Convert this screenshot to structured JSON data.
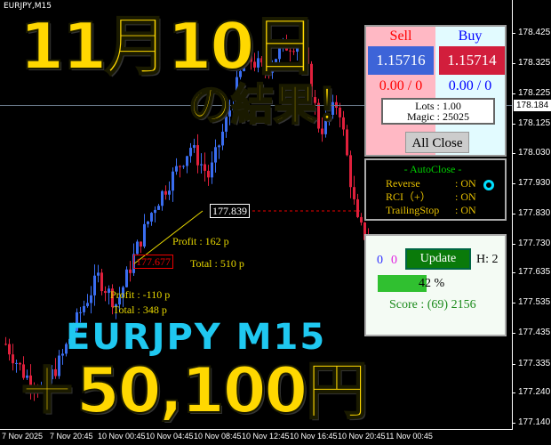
{
  "symbol": "EURJPY,M15",
  "price_axis": [
    "178.425",
    "178.325",
    "178.225",
    "178.125",
    "178.030",
    "177.930",
    "177.830",
    "177.730",
    "177.635",
    "177.535",
    "177.435",
    "177.335",
    "177.240",
    "177.140"
  ],
  "current_price": "178.184",
  "time_axis": [
    "7 Nov 2025",
    "7 Nov 20:45",
    "10 Nov 00:45",
    "10 Nov 04:45",
    "10 Nov 08:45",
    "10 Nov 12:45",
    "10 Nov 16:45",
    "10 Nov 20:45",
    "11 Nov 00:45"
  ],
  "price_path": [
    177.4,
    177.3,
    177.25,
    177.35,
    177.5,
    177.62,
    177.53,
    177.7,
    177.85,
    177.95,
    178.05,
    177.95,
    178.15,
    178.35,
    178.3,
    178.38,
    178.4,
    178.1,
    178.2,
    177.8,
    177.7
  ],
  "colors": {
    "bull": "#3a6df0",
    "bear": "#e0203c",
    "overlay_yellow": "#ffd800",
    "overlay_cyan": "#1fc8f0"
  },
  "overlay": {
    "date": "11月10日",
    "result": "の結果！",
    "pair": "EURJPY M15",
    "profit": "＋50,100円"
  },
  "trades": {
    "entry_price": "177.677",
    "exit_price": "177.839",
    "profit1": "Profit : 162 p",
    "total1": "Total : 510 p",
    "profit2": "Profit : -110 p",
    "total2": "Total : 348 p"
  },
  "panel": {
    "sell_label": "Sell",
    "buy_label": "Buy",
    "sell_price": "1.15716",
    "buy_price": "1.15714",
    "sell_pos": "0.00 / 0",
    "buy_pos": "0.00 / 0",
    "lots": "Lots   : 1.00",
    "magic": "Magic : 25025",
    "all_close": "All Close"
  },
  "autoclose": {
    "title": "- AutoClose -",
    "rows": [
      {
        "k": "Reverse",
        "v": ": ON"
      },
      {
        "k": "RCI（+）",
        "v": ": ON"
      },
      {
        "k": "TrailingStop",
        "v": ": ON"
      }
    ]
  },
  "status": {
    "count_blue": "0",
    "count_magenta": "0",
    "update": "Update",
    "h": "H: 2",
    "progress_label": "42 %",
    "progress": 0.42,
    "score": "Score : (69) 2156"
  }
}
